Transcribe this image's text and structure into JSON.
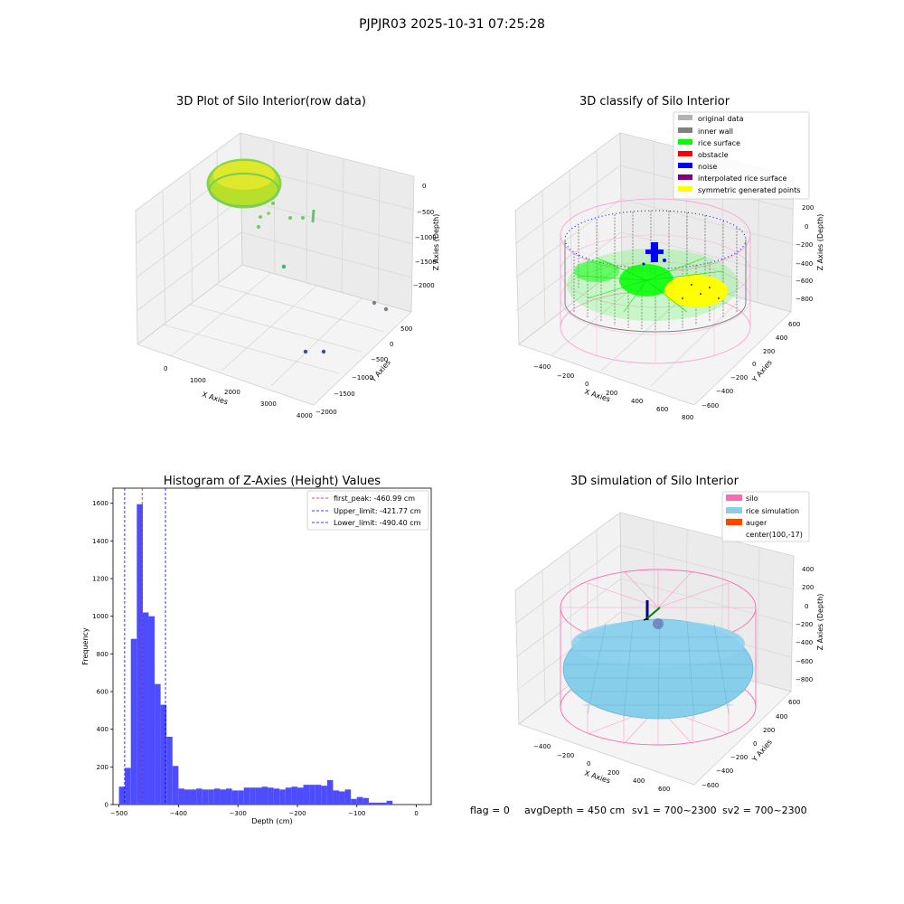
{
  "figure": {
    "suptitle": "PJPJR03 2025-10-31 07:25:28",
    "footer": {
      "flag": "flag = 0",
      "avg_depth": "avgDepth = 450 cm",
      "sv1": "sv1 = 700~2300",
      "sv2": "sv2 = 700~2300"
    }
  },
  "raw_plot": {
    "title": "3D Plot of Silo Interior(row data)",
    "xlabel": "X Axies",
    "ylabel": "Y Axies",
    "zlabel": "Z Axies (Depth)",
    "x_ticks": [
      "0",
      "1000",
      "2000",
      "3000",
      "4000"
    ],
    "y_ticks": [
      "500",
      "0",
      "−500",
      "−1000",
      "−1500",
      "−2000"
    ],
    "z_ticks": [
      "0",
      "−500",
      "−1000",
      "−1500",
      "−2000"
    ]
  },
  "classify_plot": {
    "title": "3D classify of Silo Interior",
    "xlabel": "X Axies",
    "ylabel": "Y Axies",
    "zlabel": "Z Axies (Depth)",
    "x_ticks": [
      "−400",
      "−200",
      "0",
      "200",
      "400",
      "600",
      "800"
    ],
    "y_ticks": [
      "600",
      "400",
      "200",
      "0",
      "−200",
      "−400",
      "−600"
    ],
    "z_ticks": [
      "200",
      "0",
      "−200",
      "−400",
      "−600",
      "−800"
    ],
    "legend": [
      {
        "label": "original data",
        "color": "#b3b3b3"
      },
      {
        "label": "inner wall",
        "color": "#808080"
      },
      {
        "label": "rice surface",
        "color": "#00ff00"
      },
      {
        "label": "obstacle",
        "color": "#ff0000"
      },
      {
        "label": "noise",
        "color": "#0000ff"
      },
      {
        "label": "interpolated rice surface",
        "color": "#800080"
      },
      {
        "label": "symmetric generated points",
        "color": "#ffff00"
      }
    ]
  },
  "sim_plot": {
    "title": "3D simulation of Silo Interior",
    "xlabel": "X Axies",
    "ylabel": "Y Axies",
    "zlabel": "Z Axies (Depth)",
    "x_ticks": [
      "−400",
      "−200",
      "0",
      "200",
      "400",
      "600"
    ],
    "y_ticks": [
      "600",
      "400",
      "200",
      "0",
      "−200",
      "−400",
      "−600"
    ],
    "z_ticks": [
      "400",
      "200",
      "0",
      "−200",
      "−400",
      "−600",
      "−800"
    ],
    "legend": [
      {
        "label": "silo",
        "color": "#ff69b4"
      },
      {
        "label": "rice simulation",
        "color": "#87ceeb"
      },
      {
        "label": "auger",
        "color": "#ff4500"
      },
      {
        "label": "center(100,-17)",
        "color": ""
      }
    ]
  },
  "chart_data": {
    "type": "bar",
    "title": "Histogram of Z-Axies (Height) Values",
    "xlabel": "Depth (cm)",
    "ylabel": "Frequency",
    "xlim": [
      -510,
      25
    ],
    "ylim": [
      0,
      1680
    ],
    "x_ticks": [
      -500,
      -400,
      -300,
      -200,
      -100,
      0
    ],
    "y_ticks": [
      0,
      200,
      400,
      600,
      800,
      1000,
      1200,
      1400,
      1600
    ],
    "bar_color": "#4d4dff",
    "bin_start": -500,
    "bin_width": 10,
    "values": [
      95,
      195,
      880,
      1595,
      1020,
      1000,
      640,
      530,
      360,
      205,
      85,
      80,
      80,
      85,
      80,
      80,
      85,
      80,
      85,
      75,
      75,
      90,
      90,
      90,
      95,
      90,
      85,
      80,
      90,
      95,
      90,
      105,
      105,
      105,
      100,
      130,
      75,
      70,
      80,
      30,
      40,
      35,
      10,
      10,
      10,
      20
    ],
    "vlines": [
      {
        "label": "first_peak: -460.99 cm",
        "value": -460.99,
        "color": "#ff0000"
      },
      {
        "label": "Upper_limit: -421.77 cm",
        "value": -421.77,
        "color": "#0000ff"
      },
      {
        "label": "Lower_limit: -490.40 cm",
        "value": -490.4,
        "color": "#0000ff"
      }
    ],
    "legend_position": "upper right"
  }
}
